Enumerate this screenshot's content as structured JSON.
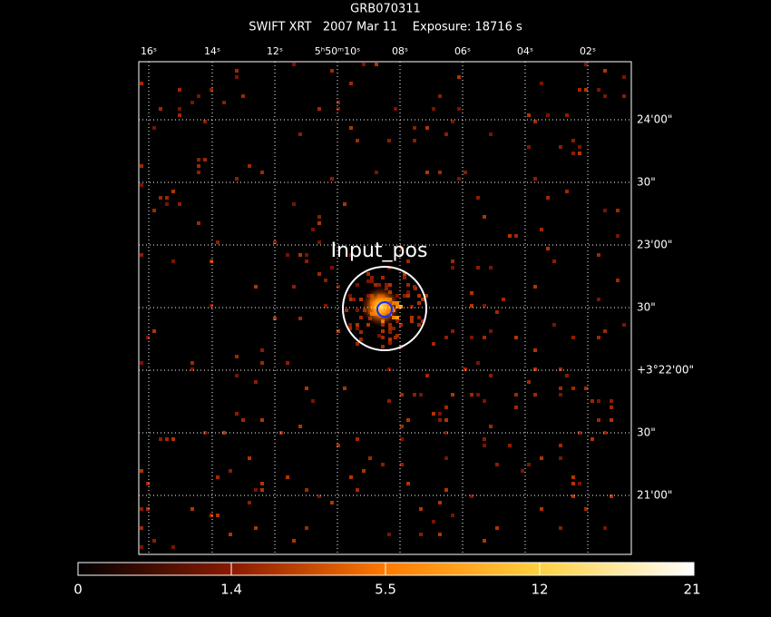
{
  "header": {
    "title": "GRB070311",
    "subtitle": "SWIFT XRT   2007 Mar 11    Exposure: 18716 s"
  },
  "image": {
    "top_labels": [
      "16ˢ",
      "14ˢ",
      "12ˢ",
      "5ʰ50ᵐ10ˢ",
      "08ˢ",
      "06ˢ",
      "04ˢ",
      "02ˢ"
    ],
    "right_labels": [
      "24'00\"",
      "30\"",
      "23'00\"",
      "30\"",
      "+3°22'00\"",
      "30\"",
      "21'00\""
    ],
    "region_label": "Input_pos"
  },
  "colorbar": {
    "labels": [
      "0",
      "1.4",
      "5.5",
      "12",
      "21"
    ]
  }
}
